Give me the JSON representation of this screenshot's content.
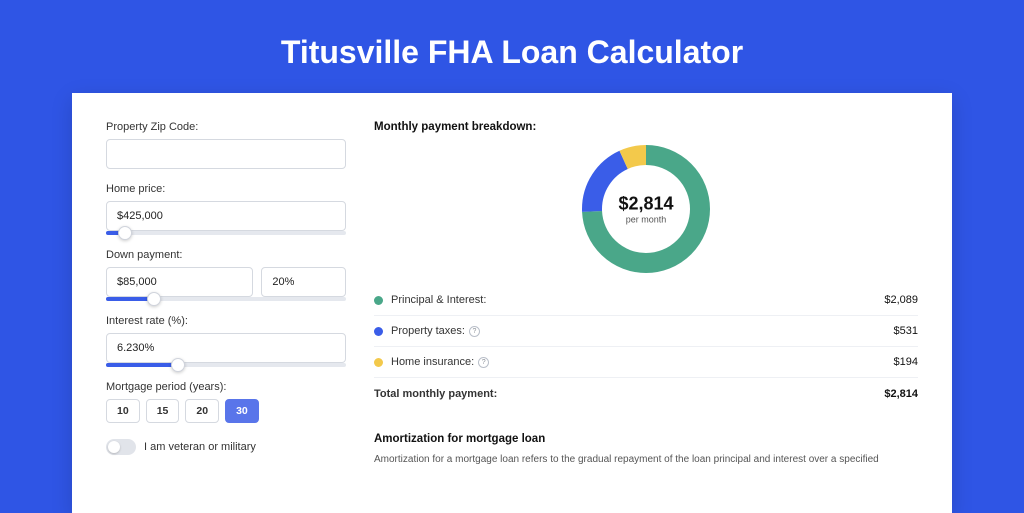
{
  "colors": {
    "page_bg": "#2f55e5",
    "card_bg": "#ffffff",
    "accent": "#3a5de8",
    "text": "#333333",
    "text_strong": "#111111"
  },
  "title": "Titusville FHA Loan Calculator",
  "form": {
    "zip": {
      "label": "Property Zip Code:",
      "value": ""
    },
    "home_price": {
      "label": "Home price:",
      "value": "$425,000",
      "slider_pct": 8
    },
    "down_payment": {
      "label": "Down payment:",
      "value": "$85,000",
      "pct_value": "20%",
      "slider_pct": 20
    },
    "interest": {
      "label": "Interest rate (%):",
      "value": "6.230%",
      "slider_pct": 30
    },
    "period": {
      "label": "Mortgage period (years):",
      "options": [
        "10",
        "15",
        "20",
        "30"
      ],
      "selected": "30"
    },
    "veteran": {
      "label": "I am veteran or military",
      "checked": false
    }
  },
  "breakdown": {
    "heading": "Monthly payment breakdown:",
    "donut": {
      "amount": "$2,814",
      "sub": "per month",
      "slices": [
        {
          "color": "#4aa789",
          "pct": 74.2
        },
        {
          "color": "#3a5de8",
          "pct": 18.9
        },
        {
          "color": "#f3c94b",
          "pct": 6.9
        }
      ],
      "thickness": 20,
      "radius": 54
    },
    "rows": [
      {
        "swatch": "#4aa789",
        "label": "Principal & Interest:",
        "info": false,
        "value": "$2,089"
      },
      {
        "swatch": "#3a5de8",
        "label": "Property taxes:",
        "info": true,
        "value": "$531"
      },
      {
        "swatch": "#f3c94b",
        "label": "Home insurance:",
        "info": true,
        "value": "$194"
      }
    ],
    "total": {
      "label": "Total monthly payment:",
      "value": "$2,814"
    }
  },
  "amortization": {
    "title": "Amortization for mortgage loan",
    "body": "Amortization for a mortgage loan refers to the gradual repayment of the loan principal and interest over a specified"
  }
}
